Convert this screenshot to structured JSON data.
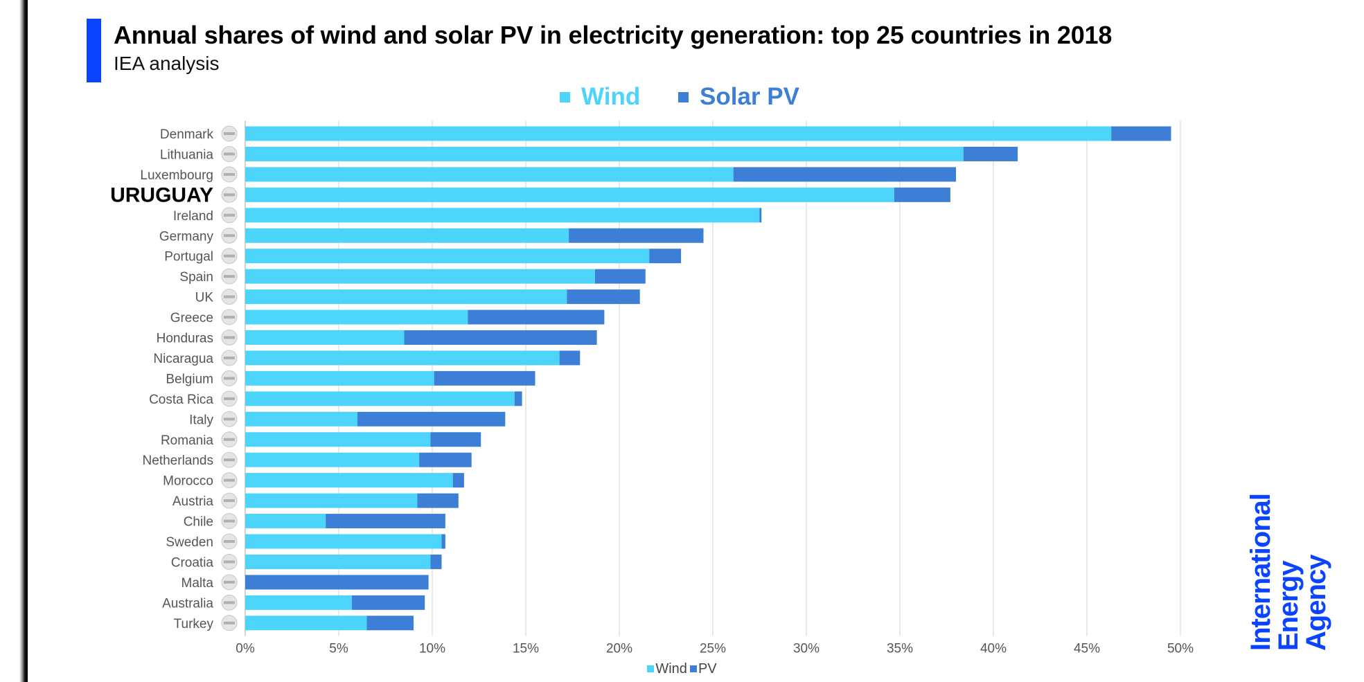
{
  "colors": {
    "wind": "#4cd4fa",
    "solar": "#3d7fd6",
    "title_accent": "#0a44ff",
    "grid": "#dddddd",
    "label": "#555555",
    "logo": "#0a44ff"
  },
  "header": {
    "title": "Annual shares of wind and solar PV in electricity generation: top 25 countries in 2018",
    "subtitle": "IEA analysis"
  },
  "legend_top": {
    "wind": "Wind",
    "solar": "Solar PV"
  },
  "legend_bottom": {
    "wind": "Wind",
    "solar": "PV"
  },
  "logo": {
    "line1": "International",
    "line2": "Energy Agency"
  },
  "chart_data": {
    "type": "bar",
    "orientation": "horizontal",
    "stacked": true,
    "title": "Annual shares of wind and solar PV in electricity generation: top 25 countries in 2018",
    "subtitle": "IEA analysis",
    "xlabel": "",
    "ylabel": "",
    "xlim": [
      0,
      50
    ],
    "x_ticks": [
      "0%",
      "5%",
      "10%",
      "15%",
      "20%",
      "25%",
      "30%",
      "35%",
      "40%",
      "45%",
      "50%"
    ],
    "grid": true,
    "highlight_category": "URUGUAY",
    "categories": [
      "Denmark",
      "Lithuania",
      "Luxembourg",
      "URUGUAY",
      "Ireland",
      "Germany",
      "Portugal",
      "Spain",
      "UK",
      "Greece",
      "Honduras",
      "Nicaragua",
      "Belgium",
      "Costa Rica",
      "Italy",
      "Romania",
      "Netherlands",
      "Morocco",
      "Austria",
      "Chile",
      "Sweden",
      "Croatia",
      "Malta",
      "Australia",
      "Turkey"
    ],
    "series": [
      {
        "name": "Wind",
        "values": [
          46.3,
          38.4,
          26.1,
          34.7,
          27.5,
          17.3,
          21.6,
          18.7,
          17.2,
          11.9,
          8.5,
          16.8,
          10.1,
          14.4,
          6.0,
          9.9,
          9.3,
          11.1,
          9.2,
          4.3,
          10.5,
          9.9,
          0.0,
          5.7,
          6.5
        ]
      },
      {
        "name": "Solar PV",
        "values": [
          3.2,
          2.9,
          11.9,
          3.0,
          0.1,
          7.2,
          1.7,
          2.7,
          3.9,
          7.3,
          10.3,
          1.1,
          5.4,
          0.4,
          7.9,
          2.7,
          2.8,
          0.6,
          2.2,
          6.4,
          0.2,
          0.6,
          9.8,
          3.9,
          2.5
        ]
      }
    ]
  }
}
